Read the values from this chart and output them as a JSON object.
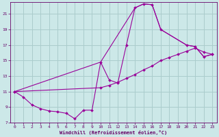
{
  "bg_color": "#cce8e8",
  "grid_color": "#aacccc",
  "line_color": "#990099",
  "marker_color": "#990099",
  "xlabel": "Windchill (Refroidissement éolien,°C)",
  "xlabel_color": "#660066",
  "tick_color": "#660066",
  "xlim": [
    -0.5,
    23.5
  ],
  "ylim": [
    7,
    22.5
  ],
  "xticks": [
    0,
    1,
    2,
    3,
    4,
    5,
    6,
    7,
    8,
    9,
    10,
    11,
    12,
    13,
    14,
    15,
    16,
    17,
    18,
    19,
    20,
    21,
    22,
    23
  ],
  "yticks": [
    7,
    9,
    11,
    13,
    15,
    17,
    19,
    21
  ],
  "line1_x": [
    0,
    1,
    2,
    3,
    4,
    5,
    6,
    7,
    8,
    9,
    10,
    11,
    12,
    13,
    14,
    15,
    16,
    17,
    20,
    21,
    22,
    23
  ],
  "line1_y": [
    11.0,
    10.3,
    9.3,
    8.8,
    8.5,
    8.4,
    8.2,
    7.5,
    8.6,
    8.6,
    14.8,
    12.5,
    12.1,
    17.0,
    21.8,
    22.3,
    22.2,
    19.0,
    17.0,
    16.8,
    15.5,
    15.8
  ],
  "line2_x": [
    0,
    10,
    11,
    12,
    13,
    14,
    15,
    16,
    17,
    18,
    19,
    20,
    21,
    22,
    23
  ],
  "line2_y": [
    11.0,
    11.5,
    11.8,
    12.2,
    12.7,
    13.2,
    13.8,
    14.3,
    15.0,
    15.4,
    15.8,
    16.2,
    16.6,
    16.1,
    15.8
  ],
  "line3_x": [
    0,
    10,
    14,
    15,
    16,
    17,
    20,
    21,
    22,
    23
  ],
  "line3_y": [
    11.0,
    14.8,
    21.8,
    22.3,
    22.2,
    19.0,
    17.0,
    16.8,
    15.5,
    15.8
  ]
}
